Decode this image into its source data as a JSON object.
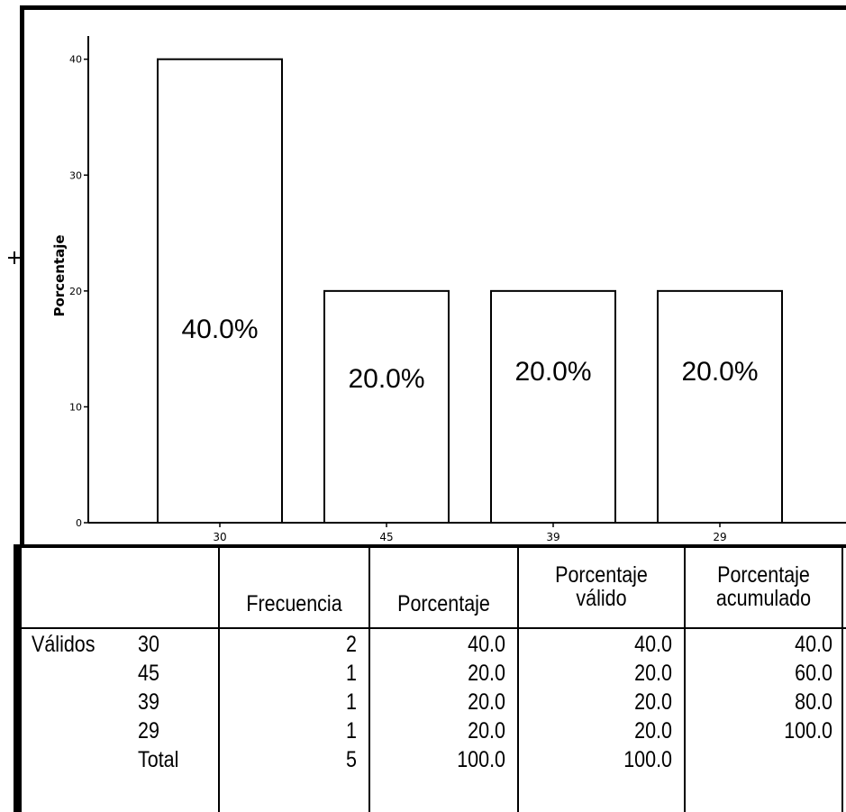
{
  "chart_data": {
    "type": "bar",
    "categories": [
      "30",
      "45",
      "39",
      "29"
    ],
    "values": [
      40,
      20,
      20,
      20
    ],
    "data_labels": [
      "40.0%",
      "20.0%",
      "20.0%",
      "20.0%"
    ],
    "ylabel": "Porcentaje",
    "xlabel": "",
    "ylim": [
      0,
      42
    ],
    "yticks": [
      0,
      10,
      20,
      30,
      40
    ],
    "grid": false,
    "bar_fill": "#ffffff",
    "bar_stroke": "#000000"
  },
  "table": {
    "headers": {
      "frecuencia": "Frecuencia",
      "porcentaje": "Porcentaje",
      "valido_line1": "Porcentaje",
      "valido_line2": "válido",
      "acumulado_line1": "Porcentaje",
      "acumulado_line2": "acumulado"
    },
    "group_label": "Válidos",
    "rows": [
      {
        "label": "30",
        "frecuencia": "2",
        "porcentaje": "40.0",
        "valido": "40.0",
        "acumulado": "40.0"
      },
      {
        "label": "45",
        "frecuencia": "1",
        "porcentaje": "20.0",
        "valido": "20.0",
        "acumulado": "60.0"
      },
      {
        "label": "39",
        "frecuencia": "1",
        "porcentaje": "20.0",
        "valido": "20.0",
        "acumulado": "80.0"
      },
      {
        "label": "29",
        "frecuencia": "1",
        "porcentaje": "20.0",
        "valido": "20.0",
        "acumulado": "100.0"
      },
      {
        "label": "Total",
        "frecuencia": "5",
        "porcentaje": "100.0",
        "valido": "100.0",
        "acumulado": ""
      }
    ]
  }
}
